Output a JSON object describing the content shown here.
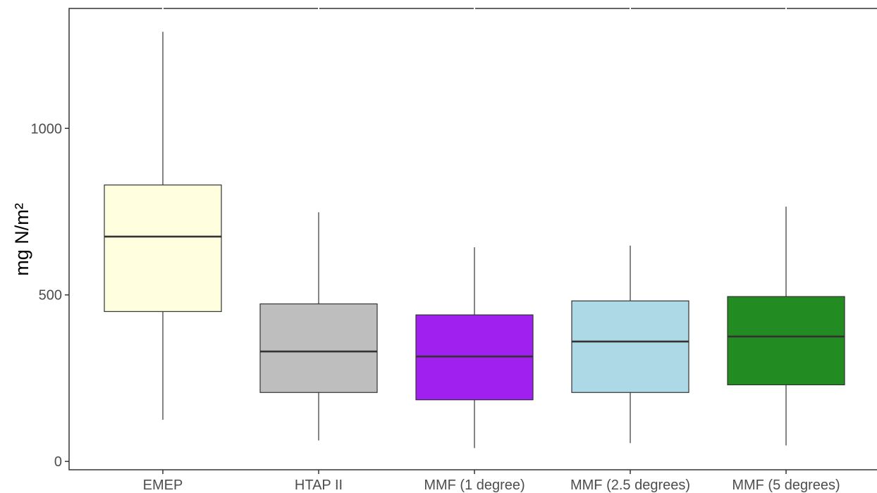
{
  "chart_data": {
    "type": "boxplot",
    "title": "",
    "xlabel": "",
    "ylabel": "mg N/m²",
    "ylim": [
      -25,
      1360
    ],
    "yticks": [
      0,
      500,
      1000
    ],
    "ytick_labels": [
      "0",
      "500",
      "1000"
    ],
    "grid": false,
    "legend": "none",
    "categories": [
      "EMEP",
      "HTAP II",
      "MMF (1 degree)",
      "MMF (2.5 degrees)",
      "MMF (5 degrees)"
    ],
    "boxes": [
      {
        "category": "EMEP",
        "whisker_low": 125,
        "q1": 450,
        "median": 675,
        "q3": 830,
        "whisker_high": 1290,
        "color": "#FFFFE0"
      },
      {
        "category": "HTAP II",
        "whisker_low": 63,
        "q1": 207,
        "median": 330,
        "q3": 473,
        "whisker_high": 748,
        "color": "#BEBEBE"
      },
      {
        "category": "MMF (1 degree)",
        "whisker_low": 40,
        "q1": 185,
        "median": 315,
        "q3": 440,
        "whisker_high": 643,
        "color": "#A020F0"
      },
      {
        "category": "MMF (2.5 degrees)",
        "whisker_low": 55,
        "q1": 207,
        "median": 360,
        "q3": 482,
        "whisker_high": 648,
        "color": "#ADD8E6"
      },
      {
        "category": "MMF (5 degrees)",
        "whisker_low": 48,
        "q1": 230,
        "median": 375,
        "q3": 495,
        "whisker_high": 765,
        "color": "#228B22"
      }
    ]
  }
}
